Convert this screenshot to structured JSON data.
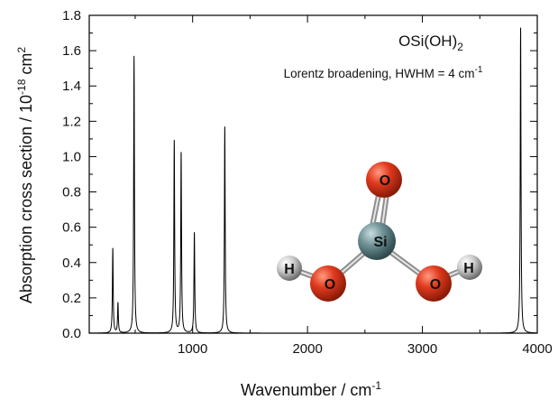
{
  "chart_data": {
    "type": "line",
    "title": "OSi(OH)",
    "title_subscript": "2",
    "subtitle": "Lorentz broadening, HWHM = 4 cm",
    "subtitle_superscript": "-1",
    "xlabel": "Wavenumber / cm",
    "xlabel_superscript": "-1",
    "ylabel": "Absorption cross section / 10",
    "ylabel_superscript": "-18",
    "ylabel_suffix": "cm",
    "ylabel_suffix_superscript": "2",
    "xlim": [
      100,
      4000
    ],
    "ylim": [
      0,
      1.8
    ],
    "x_ticks": [
      "1000",
      "2000",
      "3000",
      "4000"
    ],
    "y_ticks": [
      "0.0",
      "0.2",
      "0.4",
      "0.6",
      "0.8",
      "1.0",
      "1.2",
      "1.4",
      "1.6",
      "1.8"
    ],
    "grid": false,
    "hwhm": 4,
    "series": [
      {
        "peaks": [
          {
            "x": 305,
            "y": 0.48
          },
          {
            "x": 350,
            "y": 0.17
          },
          {
            "x": 490,
            "y": 1.57
          },
          {
            "x": 840,
            "y": 1.09
          },
          {
            "x": 900,
            "y": 1.02
          },
          {
            "x": 1015,
            "y": 0.57
          },
          {
            "x": 1280,
            "y": 1.17
          },
          {
            "x": 3855,
            "y": 1.73
          }
        ]
      }
    ]
  },
  "molecule": {
    "atoms": [
      {
        "label": "O"
      },
      {
        "label": "Si"
      },
      {
        "label": "O"
      },
      {
        "label": "O"
      },
      {
        "label": "H"
      },
      {
        "label": "H"
      }
    ]
  }
}
